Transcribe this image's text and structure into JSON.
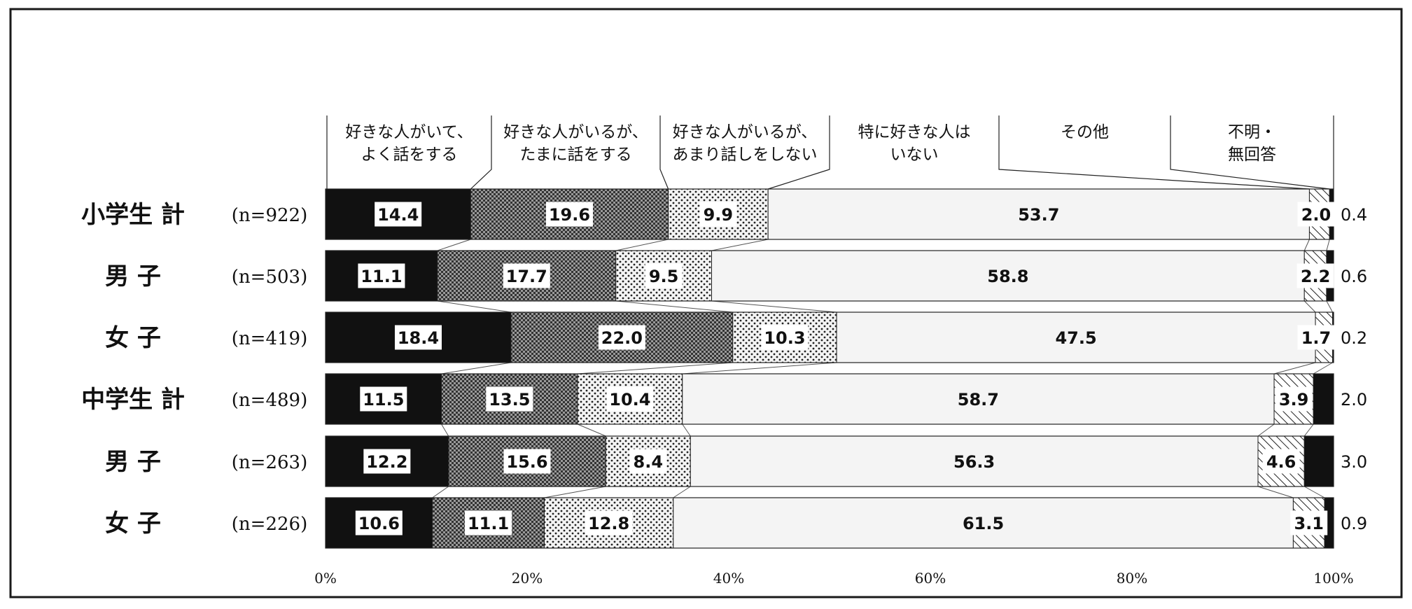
{
  "chart_data": {
    "type": "bar",
    "orientation": "horizontal",
    "stacked": true,
    "normalized_percent": true,
    "categories": [
      "小学生 計",
      "男 子",
      "女 子",
      "中学生 計",
      "男 子",
      "女 子"
    ],
    "sample_sizes": [
      "(n=922)",
      "(n=503)",
      "(n=419)",
      "(n=489)",
      "(n=263)",
      "(n=226)"
    ],
    "series": [
      {
        "name": "好きな人がいて、\nよく話をする",
        "values": [
          14.4,
          11.1,
          18.4,
          11.5,
          12.2,
          10.6
        ],
        "pattern": "solid-black"
      },
      {
        "name": "好きな人がいるが、\nたまに話をする",
        "values": [
          19.6,
          17.7,
          22.0,
          13.5,
          15.6,
          11.1
        ],
        "pattern": "dense-check"
      },
      {
        "name": "好きな人がいるが、\nあまり話しをしない",
        "values": [
          9.9,
          9.5,
          10.3,
          10.4,
          8.4,
          12.8
        ],
        "pattern": "dots"
      },
      {
        "name": "特に好きな人は\nいない",
        "values": [
          53.7,
          58.8,
          47.5,
          58.7,
          56.3,
          61.5
        ],
        "pattern": "light"
      },
      {
        "name": "その他",
        "values": [
          2.0,
          2.2,
          1.7,
          3.9,
          4.6,
          3.1
        ],
        "pattern": "hatch"
      },
      {
        "name": "不明・\n無回答",
        "values": [
          0.4,
          0.6,
          0.2,
          2.0,
          3.0,
          0.9
        ],
        "pattern": "solid-black"
      }
    ],
    "value_labels": [
      [
        "14.4",
        "19.6",
        "9.9",
        "53.7",
        "2.0",
        "0.4"
      ],
      [
        "11.1",
        "17.7",
        "9.5",
        "58.8",
        "2.2",
        "0.6"
      ],
      [
        "18.4",
        "22.0",
        "10.3",
        "47.5",
        "1.7",
        "0.2"
      ],
      [
        "11.5",
        "13.5",
        "10.4",
        "58.7",
        "3.9",
        "2.0"
      ],
      [
        "12.2",
        "15.6",
        "8.4",
        "56.3",
        "4.6",
        "3.0"
      ],
      [
        "10.6",
        "11.1",
        "12.8",
        "61.5",
        "3.1",
        "0.9"
      ]
    ],
    "x_ticks": [
      "0%",
      "20%",
      "40%",
      "60%",
      "80%",
      "100%"
    ],
    "xlim": [
      0,
      100
    ],
    "grid": false,
    "legend_placement": "top",
    "colors": {
      "frame": "#1a1a1a",
      "background": "#ffffff",
      "light_fill": "#f4f4f4"
    }
  }
}
